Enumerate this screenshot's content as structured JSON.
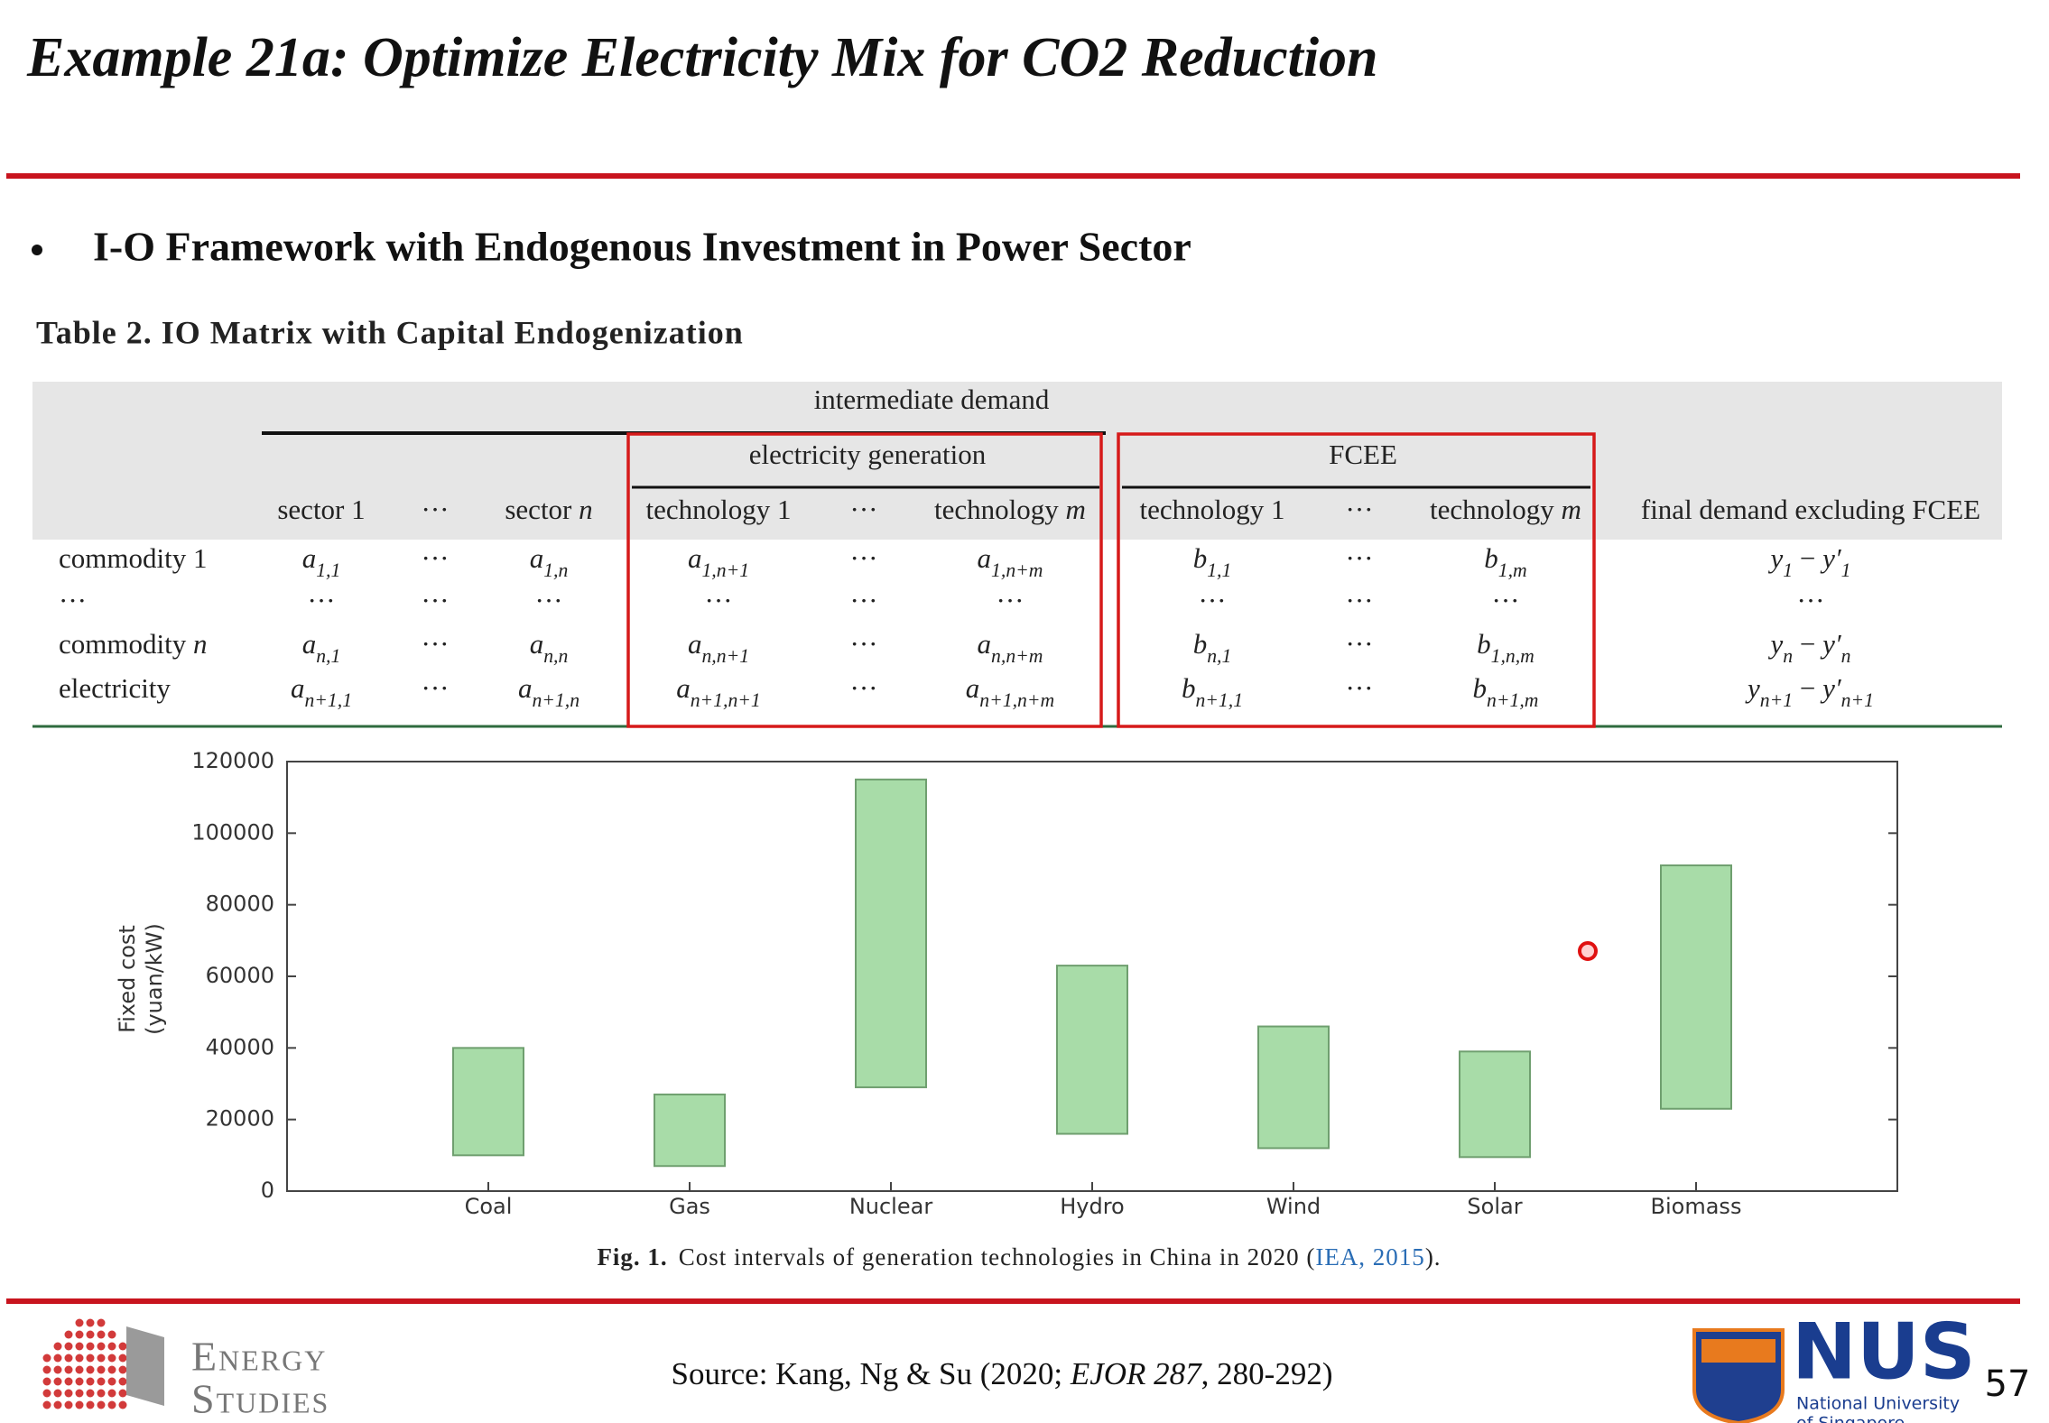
{
  "title": "Example 21a: Optimize Electricity Mix for CO2 Reduction",
  "bullet": "I-O Framework with Endogenous Investment in Power Sector",
  "table": {
    "caption": "Table 2. IO Matrix with Capital Endogenization",
    "group": "intermediate demand",
    "electricity_generation": "electricity generation",
    "fcee": "FCEE",
    "columns": [
      [
        {
          "text": "sector 1"
        }
      ],
      "···",
      [
        {
          "text": "sector "
        },
        {
          "text": "n",
          "italic": true
        }
      ],
      [
        {
          "text": "technology 1"
        }
      ],
      "···",
      [
        {
          "text": "technology "
        },
        {
          "text": "m",
          "italic": true
        }
      ],
      [
        {
          "text": "technology 1"
        }
      ],
      "···",
      [
        {
          "text": "technology "
        },
        {
          "text": "m",
          "italic": true
        }
      ],
      [
        {
          "text": "final demand excluding FCEE"
        }
      ]
    ],
    "rows": [
      {
        "label": [
          {
            "text": "commodity 1"
          }
        ],
        "cells": [
          [
            {
              "text": "a",
              "sub": "1,1",
              "italic": true
            }
          ],
          "···",
          [
            {
              "text": "a",
              "sub": "1,n",
              "italic": true
            }
          ],
          [
            {
              "text": "a",
              "sub": "1,n+1",
              "italic": true
            }
          ],
          "···",
          [
            {
              "text": "a",
              "sub": "1,n+m",
              "italic": true
            }
          ],
          [
            {
              "text": "b",
              "sub": "1,1",
              "italic": true
            }
          ],
          "···",
          [
            {
              "text": "b",
              "sub": "1,m",
              "italic": true
            }
          ],
          [
            {
              "text": "y",
              "sub": "1",
              "italic": true
            },
            {
              "text": " − "
            },
            {
              "text": "y′",
              "sub": "1",
              "italic": true
            }
          ]
        ]
      },
      {
        "label": "···",
        "cells": [
          "···",
          "···",
          "···",
          "···",
          "···",
          "···",
          "···",
          "···",
          "···",
          "···"
        ]
      },
      {
        "label": [
          {
            "text": "commodity "
          },
          {
            "text": "n",
            "italic": true
          }
        ],
        "cells": [
          [
            {
              "text": "a",
              "sub": "n,1",
              "italic": true
            }
          ],
          "···",
          [
            {
              "text": "a",
              "sub": "n,n",
              "italic": true
            }
          ],
          [
            {
              "text": "a",
              "sub": "n,n+1",
              "italic": true
            }
          ],
          "···",
          [
            {
              "text": "a",
              "sub": "n,n+m",
              "italic": true
            }
          ],
          [
            {
              "text": "b",
              "sub": "n,1",
              "italic": true
            }
          ],
          "···",
          [
            {
              "text": "b",
              "sub": "1,n,m",
              "italic": true
            }
          ],
          [
            {
              "text": "y",
              "sub": "n",
              "italic": true
            },
            {
              "text": " − "
            },
            {
              "text": "y′",
              "sub": "n",
              "italic": true
            }
          ]
        ]
      },
      {
        "label": [
          {
            "text": "electricity"
          }
        ],
        "cells": [
          [
            {
              "text": "a",
              "sub": "n+1,1",
              "italic": true
            }
          ],
          "···",
          [
            {
              "text": "a",
              "sub": "n+1,n",
              "italic": true
            }
          ],
          [
            {
              "text": "a",
              "sub": "n+1,n+1",
              "italic": true
            }
          ],
          "···",
          [
            {
              "text": "a",
              "sub": "n+1,n+m",
              "italic": true
            }
          ],
          [
            {
              "text": "b",
              "sub": "n+1,1",
              "italic": true
            }
          ],
          "···",
          [
            {
              "text": "b",
              "sub": "n+1,m",
              "italic": true
            }
          ],
          [
            {
              "text": "y",
              "sub": "n+1",
              "italic": true
            },
            {
              "text": " − "
            },
            {
              "text": "y′",
              "sub": "n+1",
              "italic": true
            }
          ]
        ]
      }
    ]
  },
  "chart_data": {
    "type": "floating-bar",
    "y_label": [
      "Fixed cost",
      "(yuan/kW)"
    ],
    "categories": [
      "Coal",
      "Gas",
      "Nuclear",
      "Hydro",
      "Wind",
      "Solar",
      "Biomass"
    ],
    "low": [
      10000,
      7000,
      29000,
      16000,
      12000,
      9500,
      23000
    ],
    "high": [
      40000,
      27000,
      115000,
      63000,
      46000,
      39000,
      91000
    ],
    "color": "#a8dca8",
    "edge_color": "#6f9f6f",
    "ylim": [
      0,
      120000
    ],
    "yticks": [
      0,
      20000,
      40000,
      60000,
      80000,
      100000,
      120000
    ]
  },
  "figure_caption": {
    "label": "Fig. 1.",
    "text": "Cost intervals of generation technologies in China in 2020 (",
    "cite": "IEA, 2015",
    "end": ")."
  },
  "source": {
    "prefix": "Source: Kang, Ng & Su (2020; ",
    "journal": "EJOR 287",
    "suffix": ", 280-292)"
  },
  "logo_left": [
    "Energy",
    "Studies"
  ],
  "logo_right": {
    "name": "NUS",
    "line1": "National University",
    "line2": "of Singapore"
  },
  "page_number": "57"
}
